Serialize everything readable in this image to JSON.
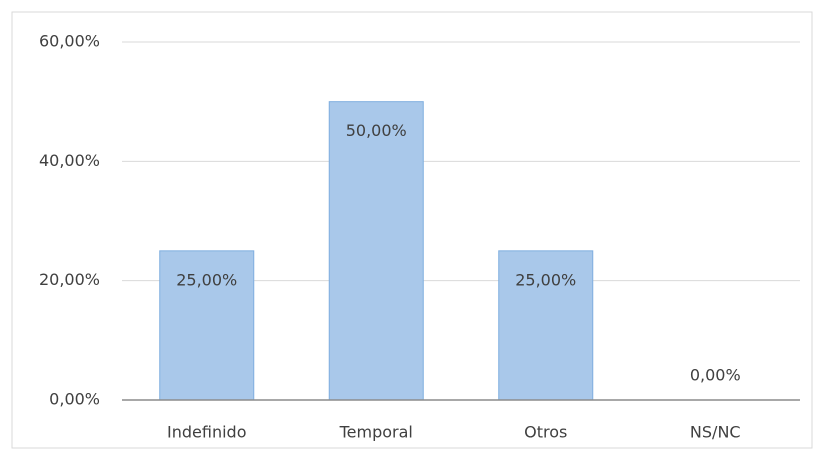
{
  "chart_data": {
    "type": "bar",
    "categories": [
      "Indefinido",
      "Temporal",
      "Otros",
      "NS/NC"
    ],
    "values": [
      25,
      50,
      25,
      0
    ],
    "value_labels": [
      "25,00%",
      "50,00%",
      "25,00%",
      "0,00%"
    ],
    "color": "#a9c8ea",
    "ylim": [
      0,
      60
    ],
    "yticks": [
      {
        "value": 0,
        "label": "0,00%"
      },
      {
        "value": 20,
        "label": "20,00%"
      },
      {
        "value": 40,
        "label": "40,00%"
      },
      {
        "value": 60,
        "label": "60,00%"
      }
    ],
    "grid": true
  }
}
